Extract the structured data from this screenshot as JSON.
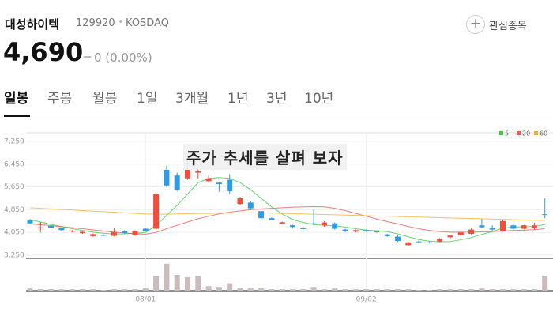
{
  "header": {
    "name": "대성하이텍",
    "code": "129920",
    "market": "KOSDAQ",
    "price": "4,690",
    "change": "0 (0.00%)",
    "watch_button": "관심종목"
  },
  "tabs": [
    "일봉",
    "주봉",
    "월봉",
    "1일",
    "3개월",
    "1년",
    "3년",
    "10년"
  ],
  "overlay_text": "주가 추세를 살펴 보자",
  "chart_data": {
    "type": "candlestick",
    "categories": [
      null,
      null,
      null,
      null,
      null,
      null,
      null,
      null,
      null,
      null,
      null,
      "08/01",
      null,
      null,
      null,
      null,
      null,
      null,
      null,
      null,
      null,
      null,
      null,
      null,
      null,
      null,
      null,
      null,
      null,
      null,
      null,
      null,
      "09/02",
      null,
      null,
      null,
      null,
      null,
      null,
      null,
      null,
      null,
      null,
      null,
      null,
      null,
      null,
      null,
      null,
      null
    ],
    "open": [
      4480,
      4200,
      4280,
      4200,
      4080,
      4030,
      3920,
      3960,
      3930,
      4090,
      3950,
      4180,
      4180,
      6250,
      6050,
      5950,
      6150,
      5850,
      5800,
      5900,
      5050,
      5100,
      4800,
      4550,
      4360,
      4300,
      4200,
      4370,
      4300,
      4370,
      4150,
      4080,
      4130,
      4080,
      3980,
      3900,
      3600,
      3730,
      3700,
      3730,
      3880,
      3950,
      4000,
      4300,
      4200,
      4100,
      4300,
      4180,
      4200,
      4690
    ],
    "high": [
      4520,
      4420,
      4300,
      4220,
      4130,
      4090,
      4010,
      3980,
      4200,
      4120,
      4120,
      4200,
      5450,
      6400,
      6150,
      6550,
      6300,
      6050,
      5830,
      6100,
      5300,
      5150,
      4850,
      4580,
      4430,
      4320,
      4250,
      4850,
      4450,
      4400,
      4180,
      4150,
      4150,
      4100,
      4000,
      3950,
      3720,
      3760,
      3720,
      3850,
      3960,
      4080,
      4200,
      4520,
      4300,
      4500,
      4350,
      4320,
      4400,
      5250
    ],
    "low": [
      4340,
      4050,
      4190,
      4100,
      4050,
      4000,
      3900,
      3920,
      3910,
      4000,
      3930,
      4080,
      4150,
      5650,
      5500,
      5900,
      5950,
      5800,
      5480,
      5400,
      5000,
      4850,
      4500,
      4470,
      4330,
      4210,
      4150,
      4300,
      4250,
      4150,
      4060,
      4050,
      4070,
      4040,
      3900,
      3720,
      3580,
      3680,
      3660,
      3700,
      3850,
      3920,
      3980,
      4200,
      4100,
      4080,
      4160,
      4150,
      4150,
      4550
    ],
    "close": [
      4370,
      4230,
      4220,
      4130,
      4110,
      4070,
      3990,
      3940,
      4060,
      4030,
      4100,
      4100,
      5400,
      5700,
      5550,
      6250,
      6200,
      5950,
      5750,
      5500,
      5250,
      4900,
      4550,
      4500,
      4410,
      4240,
      4170,
      4330,
      4400,
      4180,
      4090,
      4130,
      4090,
      4060,
      3920,
      3750,
      3700,
      3710,
      3680,
      3820,
      3940,
      4050,
      4150,
      4230,
      4150,
      4450,
      4180,
      4300,
      4300,
      4690
    ],
    "volume": [
      3,
      2,
      2,
      2,
      2,
      2,
      2,
      1,
      2,
      2,
      2,
      3,
      20,
      36,
      21,
      18,
      20,
      6,
      5,
      10,
      4,
      3,
      3,
      2,
      2,
      2,
      2,
      5,
      2,
      3,
      2,
      2,
      2,
      2,
      2,
      2,
      2,
      1,
      1,
      2,
      2,
      2,
      2,
      3,
      2,
      2,
      2,
      2,
      2,
      20
    ],
    "volume_lim": [
      0,
      40
    ],
    "up_color": "#f04d3c",
    "down_color": "#2f9be6",
    "volume_color": "#c9bcbc",
    "ma_series": [
      {
        "name": "5",
        "color": "#3cd046",
        "values": [
          4500,
          4420,
          4330,
          4260,
          4180,
          4120,
          4060,
          4020,
          3990,
          4000,
          4020,
          4050,
          4300,
          4650,
          5000,
          5400,
          5800,
          5950,
          5980,
          5950,
          5800,
          5550,
          5250,
          4950,
          4700,
          4500,
          4400,
          4330,
          4300,
          4280,
          4240,
          4180,
          4130,
          4110,
          4080,
          4000,
          3900,
          3800,
          3740,
          3720,
          3730,
          3790,
          3870,
          3980,
          4080,
          4200,
          4240,
          4250,
          4260,
          4330
        ]
      },
      {
        "name": "20",
        "color": "#f25a5a",
        "values": [
          4350,
          4320,
          4290,
          4250,
          4220,
          4180,
          4140,
          4100,
          4060,
          4030,
          4000,
          3990,
          4050,
          4180,
          4300,
          4420,
          4530,
          4620,
          4700,
          4760,
          4810,
          4850,
          4880,
          4900,
          4920,
          4940,
          4950,
          4960,
          4950,
          4900,
          4820,
          4720,
          4620,
          4520,
          4430,
          4350,
          4260,
          4180,
          4120,
          4080,
          4060,
          4060,
          4060,
          4070,
          4080,
          4100,
          4120,
          4130,
          4150,
          4180
        ]
      },
      {
        "name": "60",
        "color": "#f5b335",
        "values": [
          4920,
          4900,
          4880,
          4860,
          4840,
          4820,
          4800,
          4780,
          4760,
          4740,
          4720,
          4700,
          4690,
          4690,
          4700,
          4710,
          4720,
          4720,
          4730,
          4730,
          4740,
          4740,
          4740,
          4730,
          4720,
          4710,
          4700,
          4690,
          4680,
          4670,
          4660,
          4650,
          4640,
          4630,
          4620,
          4610,
          4600,
          4590,
          4580,
          4570,
          4560,
          4550,
          4540,
          4530,
          4520,
          4510,
          4500,
          4490,
          4480,
          4470
        ]
      }
    ],
    "ylim": [
      3250,
      7250
    ],
    "yticks": [
      {
        "value": 3250,
        "label": "3,250"
      },
      {
        "value": 4050,
        "label": "4,050"
      },
      {
        "value": 4850,
        "label": "4,850"
      },
      {
        "value": 5650,
        "label": "5,650"
      },
      {
        "value": 6450,
        "label": "6,450"
      },
      {
        "value": 7250,
        "label": "7,250"
      }
    ],
    "grid": true
  }
}
